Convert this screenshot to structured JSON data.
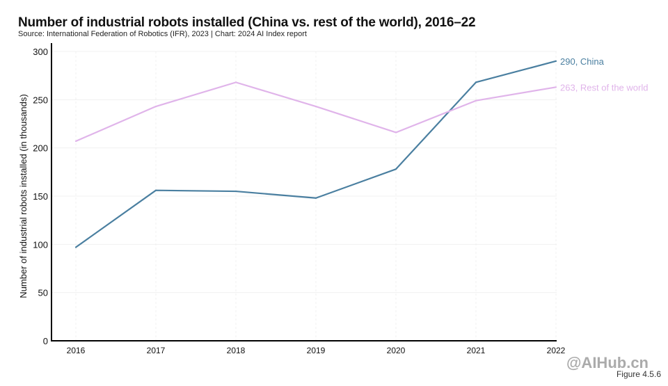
{
  "chart_data": {
    "type": "line",
    "title": "Number of industrial robots installed (China vs. rest of the world), 2016–22",
    "subtitle": "Source: International Federation of Robotics (IFR), 2023 | Chart: 2024 AI Index report",
    "xlabel": "",
    "ylabel": "Number of industrial robots installed (in thousands)",
    "x": [
      "2016",
      "2017",
      "2018",
      "2019",
      "2020",
      "2021",
      "2022"
    ],
    "ylim": [
      0,
      300
    ],
    "yticks": [
      0,
      50,
      100,
      150,
      200,
      250,
      300
    ],
    "grid": true,
    "series": [
      {
        "name": "China",
        "color": "#4a7fa0",
        "values": [
          97,
          156,
          155,
          148,
          178,
          268,
          290
        ],
        "end_label": "290, China"
      },
      {
        "name": "Rest of the world",
        "color": "#e0b4ea",
        "values": [
          207,
          243,
          268,
          243,
          216,
          249,
          263
        ],
        "end_label": "263, Rest of the world"
      }
    ]
  },
  "figure_label": "Figure 4.5.6",
  "watermark": "@AIHub.cn"
}
